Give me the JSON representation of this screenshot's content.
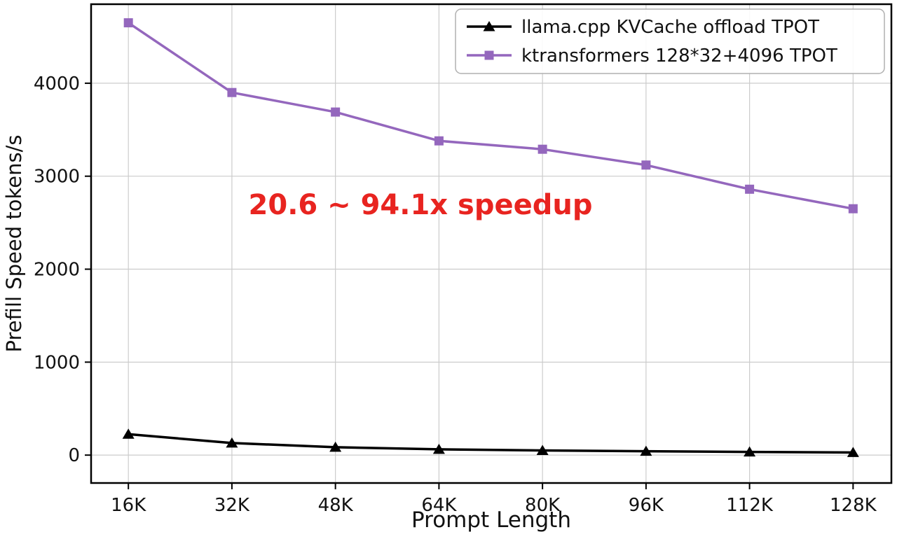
{
  "chart_data": {
    "type": "line",
    "title": "",
    "xlabel": "Prompt Length",
    "ylabel": "Prefill Speed tokens/s",
    "categories": [
      "16K",
      "32K",
      "48K",
      "64K",
      "80K",
      "96K",
      "112K",
      "128K"
    ],
    "series": [
      {
        "name": "llama.cpp KVCache offload TPOT",
        "color": "#000000",
        "marker": "triangle",
        "values": [
          225,
          130,
          85,
          62,
          50,
          42,
          34,
          28
        ]
      },
      {
        "name": "ktransformers 128*32+4096 TPOT",
        "color": "#9467bd",
        "marker": "square",
        "values": [
          4650,
          3900,
          3690,
          3380,
          3290,
          3120,
          2860,
          2650
        ]
      }
    ],
    "yticks": [
      0,
      1000,
      2000,
      3000,
      4000
    ],
    "ylim": [
      -300,
      4850
    ],
    "grid": true,
    "grid_color": "#cccccc",
    "axis_color": "#000000",
    "legend_position": "upper right",
    "annotation": {
      "text": "20.6 ~ 94.1x speedup",
      "color": "#e82420"
    }
  }
}
